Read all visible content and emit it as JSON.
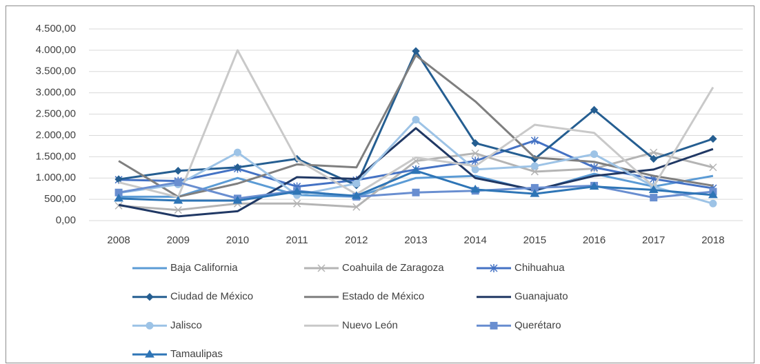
{
  "chart_data": {
    "type": "line",
    "x": [
      "2008",
      "2009",
      "2010",
      "2011",
      "2012",
      "2013",
      "2014",
      "2015",
      "2016",
      "2017",
      "2018"
    ],
    "ylim": [
      0,
      4500
    ],
    "yticks": [
      {
        "value": 0,
        "label": "0,00"
      },
      {
        "value": 500,
        "label": "500,00"
      },
      {
        "value": 1000,
        "label": "1.000,00"
      },
      {
        "value": 1500,
        "label": "1.500,00"
      },
      {
        "value": 2000,
        "label": "2.000,00"
      },
      {
        "value": 2500,
        "label": "2.500,00"
      },
      {
        "value": 3000,
        "label": "3.000,00"
      },
      {
        "value": 3500,
        "label": "3.500,00"
      },
      {
        "value": 4000,
        "label": "4.000,00"
      },
      {
        "value": 4500,
        "label": "4.500,00"
      }
    ],
    "grid": true,
    "legend": "bottom",
    "series": [
      {
        "name": "Baja California",
        "color": "#5b9bd5",
        "marker": "none",
        "values": [
          560,
          560,
          1000,
          600,
          560,
          1000,
          1050,
          700,
          1100,
          800,
          1050
        ]
      },
      {
        "name": "Coahuila de Zaragoza",
        "color": "#b4b4b4",
        "marker": "x",
        "values": [
          350,
          250,
          400,
          400,
          320,
          1400,
          1580,
          1150,
          1220,
          1600,
          1250
        ]
      },
      {
        "name": "Chihuahua",
        "color": "#4472c4",
        "marker": "star",
        "values": [
          960,
          930,
          1220,
          800,
          950,
          1200,
          1400,
          1880,
          1250,
          980,
          760
        ]
      },
      {
        "name": "Ciudad de México",
        "color": "#255e91",
        "marker": "diamond",
        "values": [
          970,
          1170,
          1250,
          1450,
          830,
          3980,
          1820,
          1450,
          2600,
          1450,
          1920
        ]
      },
      {
        "name": "Estado de México",
        "color": "#7f7f7f",
        "marker": "none",
        "values": [
          1400,
          560,
          870,
          1320,
          1250,
          3880,
          2800,
          1480,
          1380,
          1050,
          820
        ]
      },
      {
        "name": "Guanajuato",
        "color": "#203864",
        "marker": "none",
        "values": [
          370,
          100,
          220,
          1020,
          980,
          2170,
          1000,
          720,
          1050,
          1200,
          1680
        ]
      },
      {
        "name": "Jalisco",
        "color": "#9dc3e6",
        "marker": "circle",
        "values": [
          650,
          850,
          1600,
          600,
          870,
          2370,
          1200,
          1280,
          1560,
          800,
          400
        ]
      },
      {
        "name": "Nuevo León",
        "color": "#c9c9c9",
        "marker": "none",
        "values": [
          900,
          550,
          4000,
          1430,
          620,
          1480,
          1280,
          2250,
          2060,
          800,
          3130
        ]
      },
      {
        "name": "Querétaro",
        "color": "#698ed0",
        "marker": "square",
        "values": [
          660,
          900,
          520,
          700,
          560,
          660,
          700,
          770,
          820,
          540,
          680
        ]
      },
      {
        "name": "Tamaulipas",
        "color": "#2e75b6",
        "marker": "triangle",
        "values": [
          520,
          470,
          470,
          680,
          580,
          1170,
          730,
          630,
          800,
          720,
          600
        ]
      }
    ]
  }
}
